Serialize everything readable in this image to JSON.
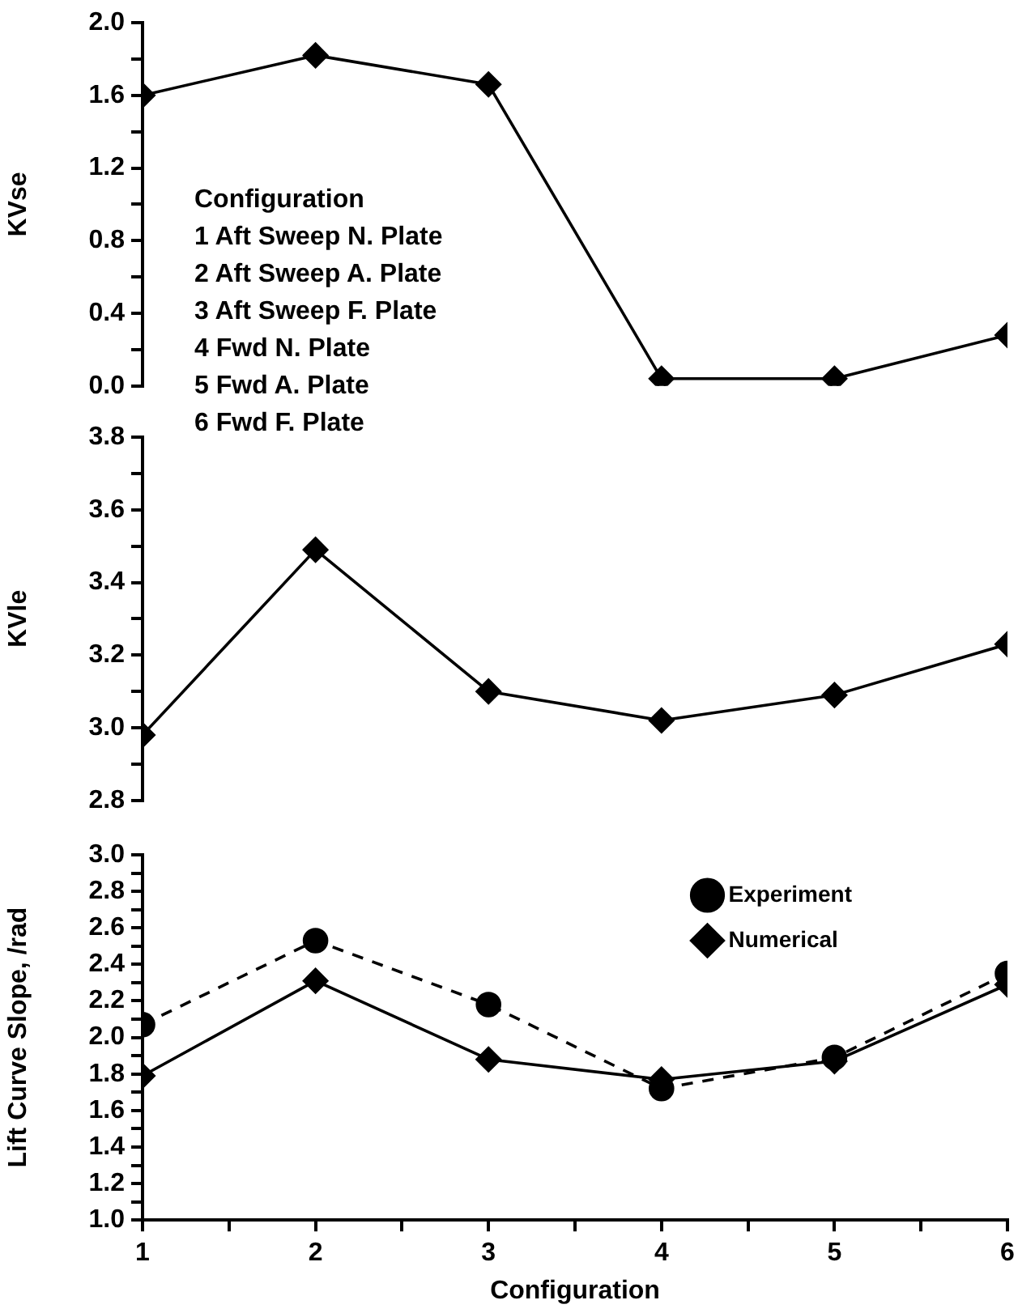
{
  "chart_data": [
    {
      "type": "line",
      "ylabel": "KVse",
      "x": [
        1,
        2,
        3,
        4,
        5,
        6
      ],
      "xlim": [
        1,
        6
      ],
      "ylim": [
        0,
        2.0
      ],
      "yticks": [
        {
          "value": 0,
          "label": "0.0"
        },
        {
          "value": 0.2,
          "label": null
        },
        0.4,
        {
          "value": 0.6,
          "label": null
        },
        0.8,
        {
          "value": 1.0,
          "label": null
        },
        1.2,
        {
          "value": 1.4,
          "label": null
        },
        1.6,
        {
          "value": 1.8,
          "label": null
        },
        {
          "value": 2.0,
          "label": "2.0"
        }
      ],
      "tick_labels": "y",
      "grid": false,
      "legend": false,
      "marker": "diamond",
      "line_style": "solid",
      "series": [
        {
          "color": "#000000",
          "values": [
            1.6,
            1.82,
            1.66,
            0.04,
            0.04,
            0.28
          ]
        }
      ],
      "annotations": [
        "Configuration",
        "1 Aft Sweep N. Plate",
        "2 Aft Sweep A. Plate",
        "3 Aft Sweep F. Plate",
        "4 Fwd N. Plate",
        "5 Fwd A. Plate",
        "6 Fwd F. Plate"
      ]
    },
    {
      "type": "line",
      "ylabel": "KVle",
      "x": [
        1,
        2,
        3,
        4,
        5,
        6
      ],
      "xlim": [
        1,
        6
      ],
      "ylim": [
        2.8,
        3.8
      ],
      "yticks": [
        2.8,
        {
          "value": 2.9,
          "label": null
        },
        {
          "value": 3.0,
          "label": "3.0"
        },
        {
          "value": 3.1,
          "label": null
        },
        3.2,
        {
          "value": 3.3,
          "label": null
        },
        3.4,
        {
          "value": 3.5,
          "label": null
        },
        3.6,
        {
          "value": 3.7,
          "label": null
        },
        3.8
      ],
      "tick_labels": "y",
      "grid": false,
      "legend": false,
      "marker": "diamond",
      "line_style": "solid",
      "series": [
        {
          "color": "#000000",
          "values": [
            2.98,
            3.49,
            3.1,
            3.02,
            3.09,
            3.23
          ]
        }
      ]
    },
    {
      "type": "line",
      "ylabel": "Lift Curve Slope, /rad",
      "xlabel": "Configuration",
      "x": [
        1,
        2,
        3,
        4,
        5,
        6
      ],
      "xlim": [
        1,
        6
      ],
      "xticks": [
        1,
        {
          "value": 1.5,
          "label": null
        },
        2,
        {
          "value": 2.5,
          "label": null
        },
        3,
        {
          "value": 3.5,
          "label": null
        },
        4,
        {
          "value": 4.5,
          "label": null
        },
        5,
        {
          "value": 5.5,
          "label": null
        },
        6
      ],
      "ylim": [
        1.0,
        3.0
      ],
      "yticks": [
        {
          "value": 1.0,
          "label": "1.0"
        },
        {
          "value": 1.1,
          "label": null
        },
        1.2,
        {
          "value": 1.3,
          "label": null
        },
        1.4,
        {
          "value": 1.5,
          "label": null
        },
        1.6,
        {
          "value": 1.7,
          "label": null
        },
        1.8,
        {
          "value": 1.9,
          "label": null
        },
        {
          "value": 2.0,
          "label": "2.0"
        },
        {
          "value": 2.1,
          "label": null
        },
        2.2,
        {
          "value": 2.3,
          "label": null
        },
        2.4,
        {
          "value": 2.5,
          "label": null
        },
        2.6,
        {
          "value": 2.7,
          "label": null
        },
        2.8,
        {
          "value": 2.9,
          "label": null
        },
        {
          "value": 3.0,
          "label": "3.0"
        }
      ],
      "grid": false,
      "legend": "top right",
      "series": [
        {
          "name": "Experiment",
          "color": "#000000",
          "marker": "circle",
          "line_style": "dashed",
          "values": [
            2.07,
            2.53,
            2.18,
            1.72,
            1.89,
            2.35
          ]
        },
        {
          "name": "Numerical",
          "color": "#000000",
          "marker": "diamond",
          "line_style": "solid",
          "values": [
            1.79,
            2.31,
            1.88,
            1.77,
            1.87,
            2.29
          ]
        }
      ]
    }
  ]
}
